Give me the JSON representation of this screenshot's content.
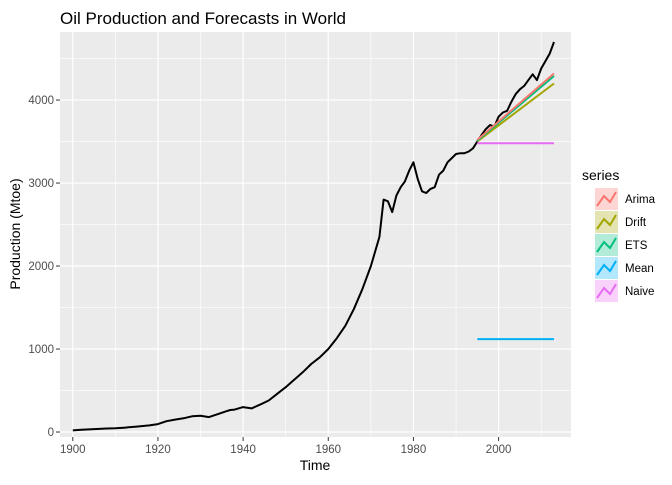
{
  "chart_data": {
    "type": "line",
    "title": "Oil Production and Forecasts in World",
    "xlabel": "Time",
    "ylabel": "Production (Mtoe)",
    "xlim": [
      1897,
      2017
    ],
    "ylim": [
      -60,
      4820
    ],
    "x_ticks": [
      1900,
      1920,
      1940,
      1960,
      1980,
      2000
    ],
    "y_ticks": [
      0,
      1000,
      2000,
      3000,
      4000
    ],
    "grid": true,
    "legend_title": "series",
    "legend_position": "right",
    "history": {
      "x": [
        1900,
        1902,
        1905,
        1908,
        1910,
        1912,
        1915,
        1918,
        1920,
        1922,
        1924,
        1926,
        1928,
        1930,
        1932,
        1934,
        1936,
        1937,
        1938,
        1940,
        1942,
        1944,
        1946,
        1948,
        1950,
        1952,
        1954,
        1956,
        1958,
        1960,
        1962,
        1964,
        1966,
        1968,
        1970,
        1972,
        1973,
        1974,
        1975,
        1976,
        1977,
        1978,
        1979,
        1980,
        1981,
        1982,
        1983,
        1984,
        1985,
        1986,
        1987,
        1988,
        1989,
        1990,
        1991,
        1992,
        1993,
        1994,
        1995,
        1996,
        1997,
        1998,
        1999,
        2000,
        2001,
        2002,
        2003,
        2004,
        2005,
        2006,
        2007,
        2008,
        2009,
        2010,
        2011,
        2012,
        2013
      ],
      "y": [
        20,
        28,
        35,
        42,
        45,
        52,
        65,
        80,
        95,
        130,
        150,
        165,
        190,
        195,
        180,
        215,
        250,
        265,
        270,
        300,
        285,
        330,
        380,
        460,
        540,
        630,
        720,
        820,
        900,
        1000,
        1130,
        1280,
        1480,
        1720,
        2000,
        2350,
        2800,
        2780,
        2650,
        2850,
        2950,
        3020,
        3150,
        3250,
        3050,
        2900,
        2880,
        2930,
        2950,
        3100,
        3150,
        3250,
        3300,
        3350,
        3360,
        3360,
        3380,
        3420,
        3500,
        3580,
        3650,
        3700,
        3680,
        3800,
        3850,
        3870,
        3980,
        4070,
        4130,
        4170,
        4240,
        4310,
        4240,
        4380,
        4470,
        4560,
        4700
      ]
    },
    "series": [
      {
        "name": "Arima",
        "color": "#F8766D",
        "x": [
          1995,
          2013
        ],
        "y": [
          3520,
          4320
        ]
      },
      {
        "name": "Drift",
        "color": "#A3A500",
        "x": [
          1995,
          2013
        ],
        "y": [
          3500,
          4200
        ]
      },
      {
        "name": "ETS",
        "color": "#00BF7D",
        "x": [
          1995,
          2013
        ],
        "y": [
          3510,
          4290
        ]
      },
      {
        "name": "Mean",
        "color": "#00B0F6",
        "x": [
          1995,
          2013
        ],
        "y": [
          1120,
          1120
        ]
      },
      {
        "name": "Naive",
        "color": "#E76BF3",
        "x": [
          1995,
          2013
        ],
        "y": [
          3480,
          3480
        ]
      }
    ]
  }
}
